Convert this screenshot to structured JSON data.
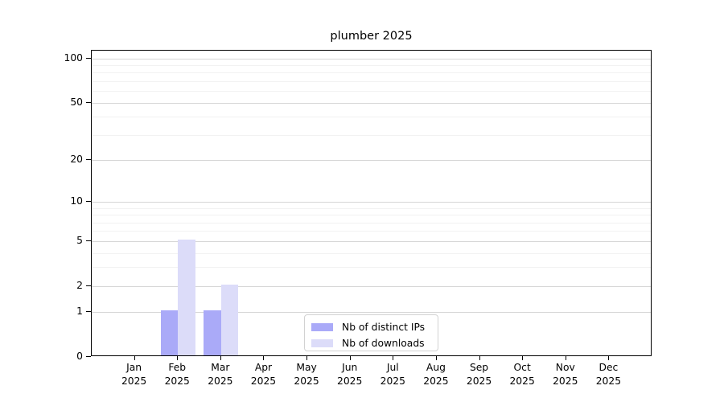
{
  "title": "plumber 2025",
  "chart_data": {
    "type": "bar",
    "title": "plumber 2025",
    "categories": [
      "Jan",
      "Feb",
      "Mar",
      "Apr",
      "May",
      "Jun",
      "Jul",
      "Aug",
      "Sep",
      "Oct",
      "Nov",
      "Dec"
    ],
    "category_year": "2025",
    "series": [
      {
        "name": "Nb of distinct IPs",
        "color": "#aaaaf8",
        "values": [
          0,
          1,
          1,
          0,
          0,
          0,
          0,
          0,
          0,
          0,
          0,
          0
        ]
      },
      {
        "name": "Nb of downloads",
        "color": "#dcdcf9",
        "values": [
          0,
          5,
          2,
          0,
          0,
          0,
          0,
          0,
          0,
          0,
          0,
          0
        ]
      }
    ],
    "yscale": "log1p",
    "yticks": [
      0,
      1,
      2,
      5,
      10,
      20,
      50,
      100
    ],
    "yminorticks": [
      3,
      4,
      6,
      7,
      8,
      9,
      30,
      40,
      60,
      70,
      80,
      90
    ],
    "ylim": [
      0,
      113
    ],
    "xlabel": "",
    "ylabel": "",
    "grid": true,
    "legend_position": "bottom-center"
  },
  "colors": {
    "background": "#ffffff",
    "spine": "#000000",
    "major_grid": "#d6d6d6",
    "minor_grid": "#f2f2f2",
    "text": "#000000"
  }
}
